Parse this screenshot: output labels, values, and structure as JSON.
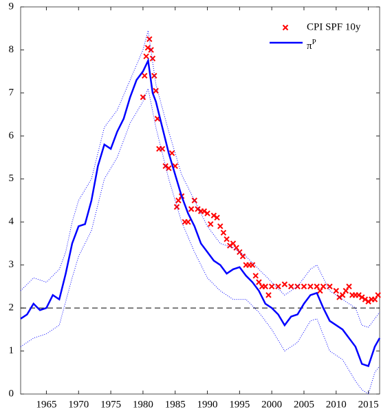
{
  "chart_data": {
    "type": "line",
    "xlim": [
      1961,
      2016.75
    ],
    "ylim": [
      0,
      9
    ],
    "xticks": [
      1965,
      1970,
      1975,
      1980,
      1985,
      1990,
      1995,
      2000,
      2005,
      2010,
      2015
    ],
    "yticks": [
      0,
      1,
      2,
      3,
      4,
      5,
      6,
      7,
      8,
      9
    ],
    "reference_line": 2,
    "legend": "upper-right",
    "series": [
      {
        "name": "CPI SPF 10y",
        "type": "scatter",
        "color": "#ff0000",
        "x": [
          1980,
          1980.25,
          1980.5,
          1980.75,
          1981,
          1981.25,
          1981.5,
          1981.75,
          1982,
          1982.25,
          1982.5,
          1983,
          1983.5,
          1984,
          1984.5,
          1985,
          1985.25,
          1985.5,
          1986,
          1986.5,
          1987,
          1987.5,
          1988,
          1988.5,
          1989,
          1989.5,
          1990,
          1990.5,
          1991,
          1991.5,
          1992,
          1992.5,
          1993,
          1993.5,
          1994,
          1994.5,
          1995,
          1995.5,
          1996,
          1996.5,
          1997,
          1997.5,
          1998,
          1998.5,
          1999,
          1999.5,
          2000,
          2001,
          2002,
          2003,
          2004,
          2005,
          2006,
          2007,
          2007.5,
          2008,
          2009,
          2010,
          2010.5,
          2011,
          2011.5,
          2012,
          2012.5,
          2013,
          2013.5,
          2014,
          2014.5,
          2015,
          2015.5,
          2016,
          2016.5
        ],
        "values": [
          6.9,
          7.4,
          7.85,
          8.05,
          8.25,
          8.0,
          7.8,
          7.4,
          7.05,
          6.4,
          5.7,
          5.7,
          5.3,
          5.25,
          5.6,
          5.3,
          4.35,
          4.5,
          4.6,
          4.0,
          4.0,
          4.3,
          4.5,
          4.3,
          4.25,
          4.25,
          4.2,
          3.95,
          4.15,
          4.1,
          3.9,
          3.75,
          3.6,
          3.45,
          3.5,
          3.4,
          3.3,
          3.2,
          3.0,
          3.0,
          3.0,
          2.75,
          2.6,
          2.5,
          2.5,
          2.3,
          2.5,
          2.5,
          2.55,
          2.5,
          2.5,
          2.5,
          2.5,
          2.5,
          2.4,
          2.5,
          2.5,
          2.4,
          2.25,
          2.3,
          2.4,
          2.5,
          2.3,
          2.3,
          2.3,
          2.25,
          2.2,
          2.15,
          2.2,
          2.2,
          2.3
        ]
      },
      {
        "name": "πP",
        "color": "#0000ff",
        "style": "solid",
        "x": [
          1961,
          1962,
          1963,
          1964,
          1965,
          1966,
          1967,
          1968,
          1969,
          1970,
          1971,
          1972,
          1973,
          1974,
          1975,
          1976,
          1977,
          1978,
          1979,
          1980,
          1980.8,
          1981.5,
          1982,
          1983,
          1984,
          1985,
          1986,
          1987,
          1988,
          1989,
          1990,
          1991,
          1992,
          1993,
          1994,
          1995,
          1996,
          1997,
          1998,
          1999,
          2000,
          2001,
          2002,
          2003,
          2004,
          2005,
          2006,
          2007,
          2008,
          2009,
          2010,
          2011,
          2012,
          2013,
          2014,
          2015,
          2016,
          2016.75
        ],
        "values": [
          1.75,
          1.85,
          2.1,
          1.95,
          2.0,
          2.3,
          2.2,
          2.8,
          3.5,
          3.9,
          3.95,
          4.5,
          5.3,
          5.8,
          5.7,
          6.1,
          6.4,
          6.9,
          7.3,
          7.5,
          7.75,
          7.0,
          6.8,
          6.2,
          5.6,
          5.1,
          4.6,
          4.2,
          3.9,
          3.5,
          3.3,
          3.1,
          3.0,
          2.8,
          2.9,
          2.95,
          2.75,
          2.6,
          2.4,
          2.1,
          2.0,
          1.85,
          1.6,
          1.8,
          1.85,
          2.1,
          2.3,
          2.35,
          2.0,
          1.7,
          1.6,
          1.5,
          1.3,
          1.1,
          0.7,
          0.65,
          1.1,
          1.3
        ]
      },
      {
        "color": "#0000ff",
        "style": "dotted",
        "x": [
          1961,
          1963,
          1965,
          1967,
          1968,
          1969,
          1970,
          1972,
          1974,
          1976,
          1978,
          1980,
          1980.8,
          1982,
          1984,
          1986,
          1988,
          1990,
          1992,
          1994,
          1996,
          1998,
          2000,
          2002,
          2004,
          2006,
          2007,
          2009,
          2011,
          2013,
          2014,
          2015,
          2016.75
        ],
        "values": [
          2.4,
          2.7,
          2.6,
          2.9,
          3.3,
          4.0,
          4.5,
          5.0,
          6.2,
          6.6,
          7.3,
          8.0,
          8.45,
          7.2,
          6.1,
          5.1,
          4.5,
          3.9,
          3.5,
          3.4,
          3.2,
          2.9,
          2.6,
          2.3,
          2.5,
          2.9,
          3.0,
          2.4,
          2.2,
          2.0,
          1.6,
          1.55,
          1.9
        ]
      },
      {
        "color": "#0000ff",
        "style": "dotted",
        "x": [
          1961,
          1963,
          1965,
          1967,
          1969,
          1970,
          1972,
          1974,
          1976,
          1978,
          1980,
          1980.8,
          1982,
          1984,
          1986,
          1988,
          1990,
          1992,
          1994,
          1996,
          1998,
          2000,
          2002,
          2004,
          2006,
          2007,
          2009,
          2011,
          2013,
          2014,
          2015,
          2016,
          2016.75
        ],
        "values": [
          1.1,
          1.3,
          1.4,
          1.6,
          2.7,
          3.2,
          3.8,
          5.0,
          5.5,
          6.3,
          6.8,
          7.1,
          6.2,
          5.0,
          4.0,
          3.3,
          2.7,
          2.4,
          2.2,
          2.2,
          1.9,
          1.5,
          1.0,
          1.2,
          1.7,
          1.75,
          1.0,
          0.8,
          0.3,
          0.1,
          0.0,
          0.5,
          0.65
        ]
      }
    ]
  }
}
